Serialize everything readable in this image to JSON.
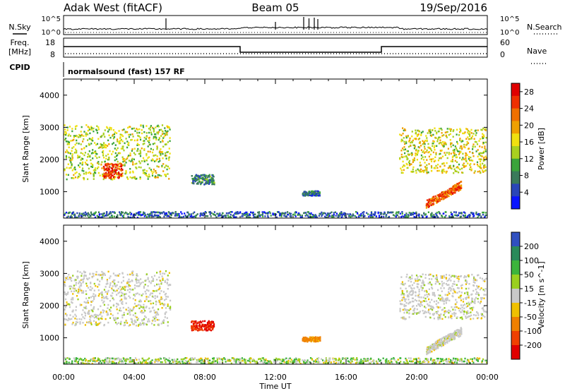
{
  "header": {
    "radar": "Adak West (fitACF)",
    "beam": "Beam 05",
    "date": "19/Sep/2016"
  },
  "panels": {
    "nsky_label": "N.Sky",
    "nsky_ticks": [
      "10^5",
      "10^0"
    ],
    "nsearch_label": "N.Search",
    "nsearch_ticks": [
      "10^5",
      "10^0"
    ],
    "freq_label": "Freq.",
    "freq_unit": "[MHz]",
    "freq_ticks": [
      "18",
      "8"
    ],
    "nave_label": "Nave",
    "nave_ticks": [
      "60",
      "0"
    ],
    "cpid_label": "CPID",
    "cpid_text": "normalsound (fast) 157 RF"
  },
  "chart_data": [
    {
      "type": "heatmap",
      "title": "",
      "xlabel": "Time UT",
      "ylabel": "Slant Range [km]",
      "colorbar_label": "Power [dB]",
      "xlim": [
        "00:00",
        "24:00"
      ],
      "x_ticks": [
        "00:00",
        "04:00",
        "08:00",
        "12:00",
        "16:00",
        "20:00",
        "00:00"
      ],
      "ylim": [
        180,
        4500
      ],
      "y_ticks": [
        1000,
        2000,
        3000,
        4000
      ],
      "color_scale": {
        "min": 0,
        "max": 30,
        "ticks": [
          "28",
          "24",
          "20",
          "16",
          "12",
          "8",
          "4"
        ]
      },
      "colors": [
        "#0a14ff",
        "#2a46b8",
        "#3a7a5a",
        "#3aa43a",
        "#a8d020",
        "#f0e010",
        "#f0a000",
        "#f07000",
        "#f03000",
        "#e00000"
      ],
      "regions": [
        {
          "name": "morning-band",
          "t_start": 0.0,
          "t_end": 6.0,
          "range_low": 1400,
          "range_high": 3100,
          "power_db": 14
        },
        {
          "name": "morning-core",
          "t_start": 2.2,
          "t_end": 3.3,
          "range_low": 1450,
          "range_high": 1900,
          "power_db": 26
        },
        {
          "name": "mid-patch-1",
          "t_start": 7.2,
          "t_end": 8.5,
          "range_low": 1250,
          "range_high": 1550,
          "power_db": 8
        },
        {
          "name": "mid-patch-2",
          "t_start": 13.5,
          "t_end": 14.5,
          "range_low": 900,
          "range_high": 1050,
          "power_db": 6
        },
        {
          "name": "evening-band",
          "t_start": 19.0,
          "t_end": 24.0,
          "range_low": 1600,
          "range_high": 3000,
          "power_db": 16
        },
        {
          "name": "evening-diag",
          "t_start": 20.5,
          "t_end": 22.5,
          "range_low": 500,
          "range_high": 1300,
          "power_db": 24
        },
        {
          "name": "ground-clutter",
          "t_start": 0.0,
          "t_end": 24.0,
          "range_low": 180,
          "range_high": 400,
          "power_db": 6
        }
      ]
    },
    {
      "type": "heatmap",
      "title": "",
      "xlabel": "Time UT",
      "ylabel": "Slant Range [km]",
      "colorbar_label": "Velocity [m s^-1]",
      "xlim": [
        "00:00",
        "24:00"
      ],
      "x_ticks": [
        "00:00",
        "04:00",
        "08:00",
        "12:00",
        "16:00",
        "20:00",
        "00:00"
      ],
      "ylim": [
        180,
        4500
      ],
      "y_ticks": [
        1000,
        2000,
        3000,
        4000
      ],
      "color_scale": {
        "ticks": [
          "200",
          "100",
          "50",
          "15",
          "-15",
          "-50",
          "-100",
          "-200"
        ]
      },
      "colors": [
        "#3050c0",
        "#2a8a5a",
        "#3cb43c",
        "#9ad020",
        "#c8c8c8",
        "#f0c000",
        "#f08000",
        "#f04000",
        "#e00000"
      ],
      "regions": [
        {
          "name": "morning-band",
          "t_start": 0.0,
          "t_end": 6.0,
          "range_low": 1400,
          "range_high": 3100,
          "velocity": 0
        },
        {
          "name": "mid-patch-1",
          "t_start": 7.2,
          "t_end": 8.5,
          "range_low": 1250,
          "range_high": 1550,
          "velocity": -200
        },
        {
          "name": "mid-patch-2",
          "t_start": 13.5,
          "t_end": 14.5,
          "range_low": 900,
          "range_high": 1050,
          "velocity": -60
        },
        {
          "name": "evening-band",
          "t_start": 19.0,
          "t_end": 24.0,
          "range_low": 1600,
          "range_high": 3000,
          "velocity": 0
        },
        {
          "name": "evening-diag",
          "t_start": 20.5,
          "t_end": 22.5,
          "range_low": 500,
          "range_high": 1300,
          "velocity": 0
        },
        {
          "name": "ground-clutter",
          "t_start": 0.0,
          "t_end": 24.0,
          "range_low": 180,
          "range_high": 400,
          "velocity": 30
        }
      ]
    }
  ]
}
